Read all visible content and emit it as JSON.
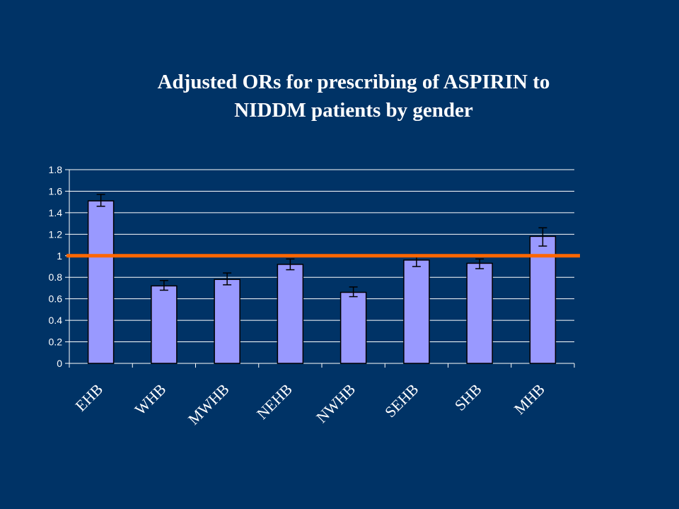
{
  "colors": {
    "background": "#003366",
    "bar_fill": "#9999ff",
    "bar_stroke": "#000000",
    "gridline": "#ffffff",
    "reference_line": "#ff6600",
    "text": "#ffffff"
  },
  "chart_data": {
    "type": "bar",
    "title_lines": [
      "Adjusted ORs for prescribing of ASPIRIN to",
      "NIDDM patients by gender"
    ],
    "categories": [
      "EHB",
      "WHB",
      "MWHB",
      "NEHB",
      "NWHB",
      "SEHB",
      "SHB",
      "MHB"
    ],
    "values": [
      1.51,
      0.72,
      0.78,
      0.92,
      0.66,
      0.96,
      0.93,
      1.18
    ],
    "error_low": [
      1.46,
      0.68,
      0.73,
      0.87,
      0.62,
      0.9,
      0.88,
      1.09
    ],
    "error_high": [
      1.57,
      0.77,
      0.84,
      0.97,
      0.71,
      1.01,
      0.97,
      1.26
    ],
    "yticks": [
      "0",
      "0.2",
      "0.4",
      "0.6",
      "0.8",
      "1",
      "1.2",
      "1.4",
      "1.6",
      "1.8"
    ],
    "ylim": [
      0,
      1.8
    ],
    "reference_line": 1,
    "grid": true,
    "xlabel": "",
    "ylabel": ""
  }
}
